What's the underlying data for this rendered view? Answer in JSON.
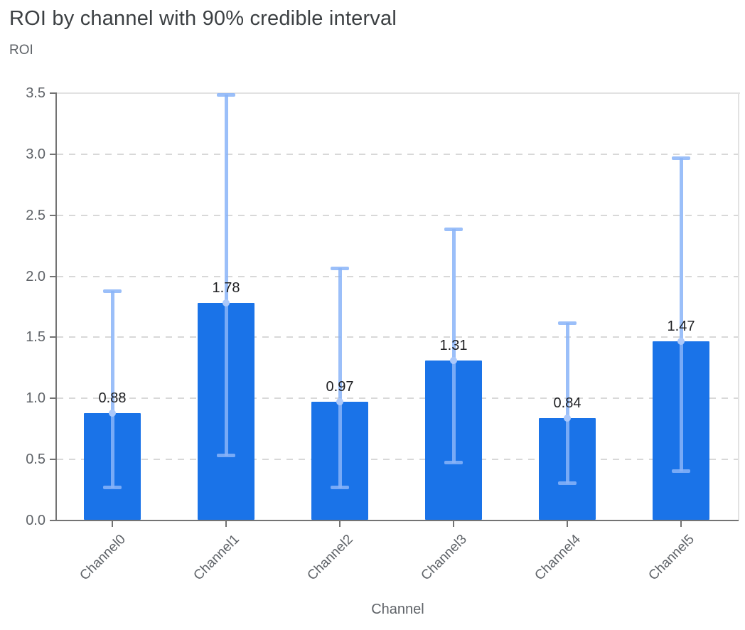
{
  "header": {
    "title": "ROI by channel with 90% credible interval"
  },
  "chart_data": {
    "type": "bar",
    "title": "ROI by channel with 90% credible interval",
    "xlabel": "Channel",
    "ylabel": "ROI",
    "ci_level": "90%",
    "categories": [
      "Channel0",
      "Channel1",
      "Channel2",
      "Channel3",
      "Channel4",
      "Channel5"
    ],
    "values": [
      0.88,
      1.78,
      0.97,
      1.31,
      0.84,
      1.47
    ],
    "value_labels": [
      "0.88",
      "1.78",
      "0.97",
      "1.31",
      "0.84",
      "1.47"
    ],
    "ci_low": [
      0.27,
      0.53,
      0.27,
      0.47,
      0.3,
      0.4
    ],
    "ci_high": [
      1.88,
      3.49,
      2.07,
      2.39,
      1.62,
      2.97
    ],
    "y_ticks": [
      "0.0",
      "0.5",
      "1.0",
      "1.5",
      "2.0",
      "2.5",
      "3.0",
      "3.5"
    ],
    "ylim": [
      0,
      3.5
    ],
    "grid": true,
    "legend": "none",
    "colors": {
      "bar": "#1a73e8",
      "error_bar": "rgba(138,180,248,0.85)",
      "mean_point": "#abc8fa",
      "value_label": "#202124",
      "title": "#3c4043",
      "axis_label": "#5f6368"
    }
  }
}
